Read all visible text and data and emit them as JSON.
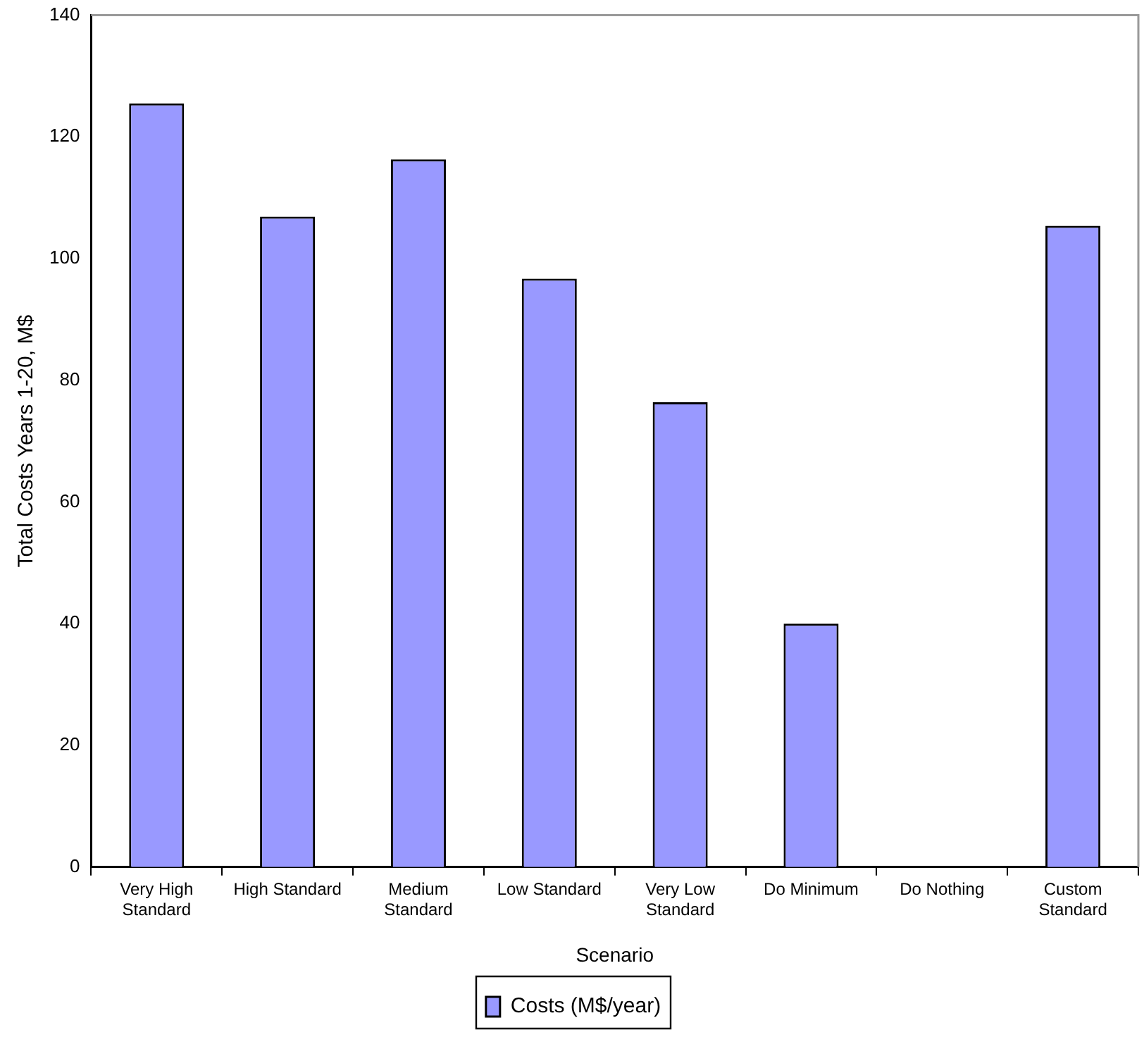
{
  "chart_data": {
    "type": "bar",
    "xlabel": "Scenario",
    "ylabel": "Total Costs Years 1-20, M$",
    "categories": [
      "Very High Standard",
      "High Standard",
      "Medium Standard",
      "Low Standard",
      "Very Low Standard",
      "Do Minimum",
      "Do Nothing",
      "Custom Standard"
    ],
    "series": [
      {
        "name": "Costs (M$/year)",
        "color": "#9999ff",
        "values": [
          125.5,
          106.9,
          116.3,
          96.7,
          76.4,
          40.0,
          0,
          105.4
        ]
      }
    ],
    "ylim": [
      0,
      140
    ],
    "yticks": [
      0,
      20,
      40,
      60,
      80,
      100,
      120,
      140
    ],
    "grid": false,
    "legend": "bottom"
  }
}
